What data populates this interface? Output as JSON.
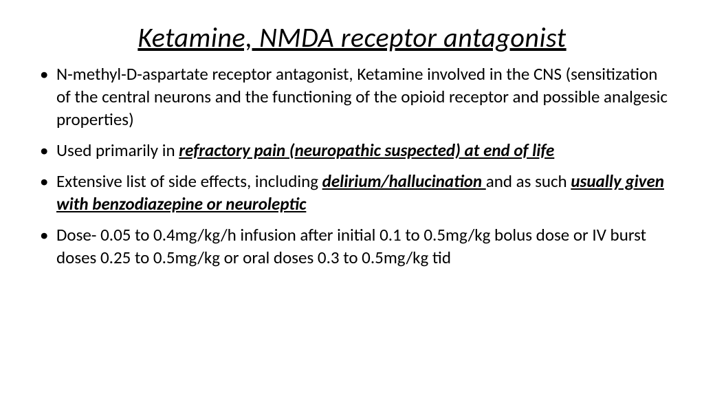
{
  "title": "Ketamine, NMDA receptor antagonist",
  "bullets": [
    {
      "pre": "N-methyl-D-aspartate receptor antagonist, Ketamine involved in the CNS (sensitization of the central neurons and the functioning of the opioid receptor and possible analgesic properties)",
      "emph1": "",
      "mid": "",
      "emph2": "",
      "post": ""
    },
    {
      "pre": "Used primarily in ",
      "emph1": "refractory pain (neuropathic suspected) at end of life",
      "mid": "",
      "emph2": "",
      "post": ""
    },
    {
      "pre": "Extensive list of side effects, including ",
      "emph1": "delirium/hallucination ",
      "mid": "and as such ",
      "emph2": "usually given with benzodiazepine or neuroleptic",
      "post": ""
    },
    {
      "pre": "Dose- 0.05 to 0.4mg/kg/h infusion after initial 0.1 to 0.5mg/kg bolus dose or IV burst doses 0.25 to 0.5mg/kg or oral doses 0.3 to 0.5mg/kg tid",
      "emph1": "",
      "mid": "",
      "emph2": "",
      "post": ""
    }
  ],
  "colors": {
    "background": "#ffffff",
    "text": "#000000"
  },
  "typography": {
    "title_fontsize": 40,
    "body_fontsize": 25,
    "font_family": "Calibri"
  }
}
